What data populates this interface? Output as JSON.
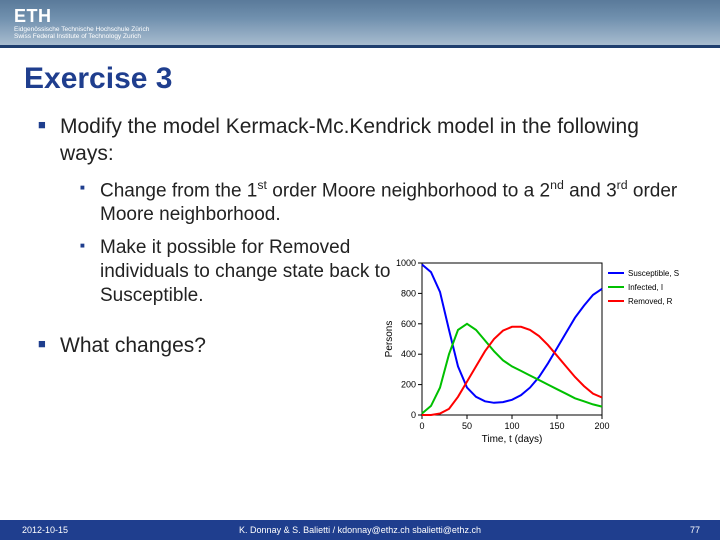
{
  "header": {
    "logo": "ETH",
    "logo_sub1": "Eidgenössische Technische Hochschule Zürich",
    "logo_sub2": "Swiss Federal Institute of Technology Zurich"
  },
  "title": "Exercise 3",
  "bullets": {
    "main1": "Modify the model Kermack-Mc.Kendrick model in the following ways:",
    "sub1_prefix": "Change from the 1",
    "sub1_sup1": "st",
    "sub1_mid": " order Moore neighborhood to a 2",
    "sub1_sup2": "nd",
    "sub1_mid2": " and 3",
    "sub1_sup3": "rd",
    "sub1_suffix": " order Moore neighborhood.",
    "sub2": "Make it possible for Removed individuals to change state back to Susceptible.",
    "main2": "What changes?"
  },
  "chart": {
    "type": "line",
    "xlabel": "Time, t (days)",
    "ylabel": "Persons",
    "xlim": [
      0,
      200
    ],
    "xticks": [
      0,
      50,
      100,
      150,
      200
    ],
    "ylim": [
      0,
      1000
    ],
    "yticks": [
      0,
      200,
      400,
      600,
      800,
      1000
    ],
    "label_fontsize": 10,
    "tick_fontsize": 9,
    "background_color": "#ffffff",
    "axis_color": "#000000",
    "series": [
      {
        "name": "Susceptible, S",
        "color": "#0000ff",
        "width": 2,
        "x": [
          0,
          10,
          20,
          30,
          40,
          50,
          60,
          70,
          80,
          90,
          100,
          110,
          120,
          130,
          140,
          150,
          160,
          170,
          180,
          190,
          200
        ],
        "y": [
          990,
          940,
          810,
          560,
          320,
          180,
          120,
          90,
          80,
          85,
          100,
          130,
          180,
          250,
          340,
          440,
          540,
          640,
          720,
          790,
          830
        ]
      },
      {
        "name": "Infected, I",
        "color": "#00c000",
        "width": 2,
        "x": [
          0,
          10,
          20,
          30,
          40,
          50,
          60,
          70,
          80,
          90,
          100,
          110,
          120,
          130,
          140,
          150,
          160,
          170,
          180,
          190,
          200
        ],
        "y": [
          10,
          60,
          180,
          400,
          560,
          600,
          560,
          490,
          420,
          360,
          320,
          290,
          260,
          230,
          200,
          170,
          140,
          110,
          90,
          70,
          55
        ]
      },
      {
        "name": "Removed, R",
        "color": "#ff0000",
        "width": 2,
        "x": [
          0,
          10,
          20,
          30,
          40,
          50,
          60,
          70,
          80,
          90,
          100,
          110,
          120,
          130,
          140,
          150,
          160,
          170,
          180,
          190,
          200
        ],
        "y": [
          0,
          0,
          10,
          40,
          120,
          220,
          320,
          420,
          500,
          555,
          580,
          580,
          560,
          520,
          460,
          390,
          320,
          250,
          190,
          140,
          115
        ]
      }
    ],
    "legend": {
      "position": "right",
      "fontsize": 8
    }
  },
  "footer": {
    "date": "2012-10-15",
    "authors": "K. Donnay & S. Balietti / kdonnay@ethz.ch  sbalietti@ethz.ch",
    "page": "77"
  }
}
